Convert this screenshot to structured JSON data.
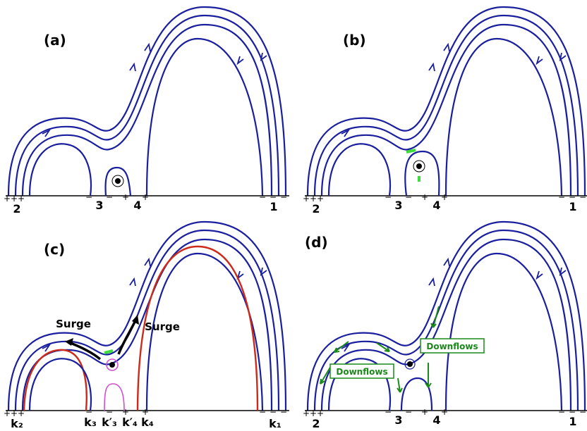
{
  "panels": [
    {
      "label": "(a)",
      "signs": [
        "+",
        "+",
        "+",
        "−",
        "−",
        "+",
        "+",
        "−",
        "−",
        "−"
      ],
      "footpoints": [
        "2",
        "3",
        "4",
        "1"
      ]
    },
    {
      "label": "(b)",
      "signs": [
        "+",
        "+",
        "+",
        "−",
        "−",
        "+",
        "+",
        "−",
        "−",
        "−"
      ],
      "footpoints": [
        "2",
        "3",
        "4",
        "1"
      ]
    },
    {
      "label": "(c)",
      "signs": [
        "+",
        "+",
        "+",
        "−",
        "−",
        "+",
        "+",
        "−",
        "−",
        "−"
      ],
      "footpoints": [
        "k₂",
        "k₃",
        "k′₃",
        "k′₄",
        "k₄",
        "k₁"
      ],
      "annotations": [
        "Surge",
        "Surge"
      ]
    },
    {
      "label": "(d)",
      "signs": [
        "+",
        "+",
        "+",
        "−",
        "−",
        "+",
        "+",
        "−",
        "−",
        "−"
      ],
      "footpoints": [
        "2",
        "3",
        "4",
        "1"
      ],
      "annotations": [
        "Downflows",
        "Downflows"
      ]
    }
  ]
}
